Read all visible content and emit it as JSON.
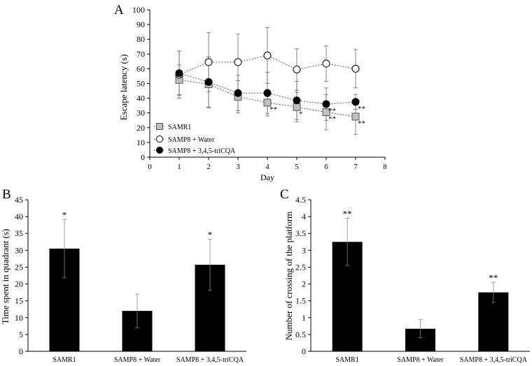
{
  "chart_data": [
    {
      "panel": "A",
      "type": "line",
      "xlabel": "Day",
      "ylabel": "Escape latency (s)",
      "xlim": [
        0,
        8
      ],
      "ylim": [
        0,
        100
      ],
      "xticks": [
        0,
        1,
        2,
        3,
        4,
        5,
        6,
        7,
        8
      ],
      "yticks": [
        0,
        10,
        20,
        30,
        40,
        50,
        60,
        70,
        80,
        90,
        100
      ],
      "x": [
        1,
        2,
        3,
        4,
        5,
        6,
        7
      ],
      "series": [
        {
          "name": "SAMR1",
          "marker": "square",
          "values": [
            52.5,
            49.5,
            41,
            37,
            34,
            30.5,
            27.5
          ],
          "errors": [
            10,
            16,
            11,
            9,
            10,
            12,
            12
          ],
          "annotations": [
            "",
            "",
            "",
            "**",
            "*",
            "**",
            "**"
          ]
        },
        {
          "name": "SAMP8 + Water",
          "marker": "open-circle",
          "values": [
            56,
            64.5,
            64.5,
            69,
            59.5,
            63.5,
            60
          ],
          "errors": [
            16,
            20,
            19,
            19,
            14,
            12,
            13
          ],
          "annotations": [
            "",
            "",
            "",
            "",
            "",
            "",
            ""
          ]
        },
        {
          "name": "SAMP8 + 3,4,5-triCQA",
          "marker": "filled-circle",
          "values": [
            57,
            51,
            43.5,
            43.5,
            38.5,
            36,
            37.5
          ],
          "errors": [
            15,
            17,
            12,
            14,
            13,
            11,
            5
          ],
          "annotations": [
            "",
            "",
            "",
            "",
            "",
            "**",
            "**"
          ]
        }
      ],
      "legend": "bottom-left"
    },
    {
      "panel": "B",
      "type": "bar",
      "ylabel": "Time spent in quadrant (s)",
      "ylim": [
        0,
        45
      ],
      "yticks": [
        0,
        5,
        10,
        15,
        20,
        25,
        30,
        35,
        40,
        45
      ],
      "categories": [
        "SAMR1",
        "SAMP8 + Water",
        "SAMP8 + 3,4,5-triCQA"
      ],
      "values": [
        30.5,
        12,
        25.7
      ],
      "errors": [
        8.7,
        5,
        7.6
      ],
      "annotations": [
        "*",
        "",
        "*"
      ]
    },
    {
      "panel": "C",
      "type": "bar",
      "ylabel": "Number of crossing of the platform",
      "ylim": [
        0,
        4.5
      ],
      "yticks": [
        "0",
        "0.5",
        "1",
        "1.5",
        "2",
        "2.5",
        "3",
        "3.5",
        "4",
        "4.5"
      ],
      "categories": [
        "SAMR1",
        "SAMP8 + Water",
        "SAMP8 + 3,4,5-triCQA"
      ],
      "values": [
        3.25,
        0.67,
        1.75
      ],
      "errors": [
        0.7,
        0.27,
        0.3
      ],
      "annotations": [
        "**",
        "",
        "**"
      ]
    }
  ]
}
